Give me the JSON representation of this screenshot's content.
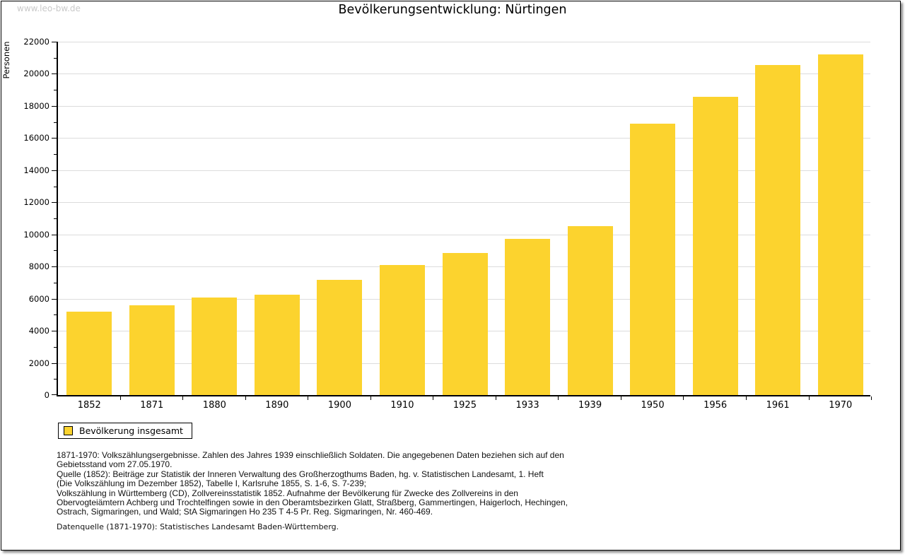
{
  "watermark": "www.leo-bw.de",
  "title": "Bevölkerungsentwicklung: Nürtingen",
  "chart_data": {
    "type": "bar",
    "title": "Bevölkerungsentwicklung: Nürtingen",
    "ylabel": "Personen",
    "xlabel": "",
    "ylim": [
      0,
      22000
    ],
    "y_major_step": 2000,
    "y_minor_step": 1000,
    "grid": true,
    "legend_position": "bottom-left",
    "bar_color": "#fcd32e",
    "series_name": "Bevölkerung insgesamt",
    "categories": [
      "1852",
      "1871",
      "1880",
      "1890",
      "1900",
      "1910",
      "1925",
      "1933",
      "1939",
      "1950",
      "1956",
      "1961",
      "1970"
    ],
    "values": [
      5200,
      5600,
      6080,
      6230,
      7160,
      8120,
      8830,
      9710,
      10530,
      16900,
      18570,
      20530,
      21200
    ]
  },
  "legend": {
    "label": "Bevölkerung insgesamt"
  },
  "footnotes": {
    "lines": [
      "1871-1970: Volkszählungsergebnisse. Zahlen des Jahres 1939 einschließlich Soldaten. Die angegebenen Daten beziehen sich auf den",
      "Gebietsstand vom 27.05.1970.",
      "Quelle (1852): Beiträge zur Statistik der Inneren Verwaltung des Großherzogthums Baden, hg. v. Statistischen Landesamt, 1. Heft",
      "(Die Volkszählung im Dezember 1852), Tabelle I, Karlsruhe 1855, S. 1-6, S. 7-239;",
      "Volkszählung in Württemberg (CD), Zollvereinsstatistik 1852. Aufnahme der Bevölkerung für Zwecke des Zollvereins in den",
      "Obervogteiämtern Achberg und Trochtelfingen sowie in den Oberamtsbezirken Glatt, Straßberg, Gammertingen, Haigerloch, Hechingen,",
      "Ostrach, Sigmaringen, und Wald; StA Sigmaringen Ho 235 T 4-5 Pr. Reg. Sigmaringen, Nr. 460-469."
    ]
  },
  "datasource": "Datenquelle (1871-1970): Statistisches Landesamt Baden-Württemberg."
}
